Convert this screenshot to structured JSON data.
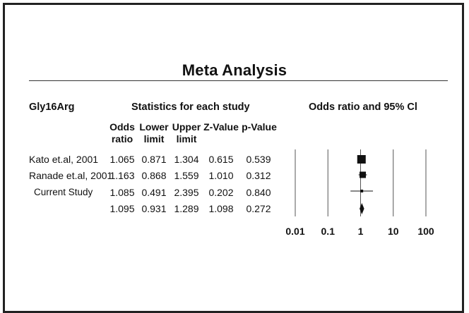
{
  "title": "Meta Analysis",
  "header": {
    "group": "Gly16Arg",
    "stats": "Statistics for each study",
    "forest": "Odds ratio and 95% Cl"
  },
  "columns": [
    {
      "line1": "Odds",
      "line2": "ratio"
    },
    {
      "line1": "Lower",
      "line2": "limit"
    },
    {
      "line1": "Upper",
      "line2": "limit"
    },
    {
      "line1": "",
      "line2": "Z-Value"
    },
    {
      "line1": "",
      "line2": "p-Value"
    }
  ],
  "rows": [
    {
      "study": "Kato et.al, 2001",
      "or": "1.065",
      "lower": "0.871",
      "upper": "1.304",
      "z": "0.615",
      "p": "0.539"
    },
    {
      "study": "Ranade et.al, 2001",
      "or": "1.163",
      "lower": "0.868",
      "upper": "1.559",
      "z": "1.010",
      "p": "0.312"
    },
    {
      "study": "Current Study",
      "or": "1.085",
      "lower": "0.491",
      "upper": "2.395",
      "z": "0.202",
      "p": "0.840"
    },
    {
      "study": "",
      "or": "1.095",
      "lower": "0.931",
      "upper": "1.289",
      "z": "1.098",
      "p": "0.272"
    }
  ],
  "chart_data": {
    "type": "scatter",
    "subtype": "forest-plot",
    "title": "Meta Analysis",
    "xlabel": "Odds ratio and 95% Cl",
    "x_scale": "log",
    "xlim": [
      0.01,
      100
    ],
    "ticks": [
      "0.01",
      "0.1",
      "1",
      "10",
      "100"
    ],
    "tick_values": [
      0.01,
      0.1,
      1,
      10,
      100
    ],
    "grid": "vertical lines at ticks",
    "points": [
      {
        "study": "Kato et.al, 2001",
        "or": 1.065,
        "lower": 0.871,
        "upper": 1.304,
        "marker": "square",
        "weight": "large"
      },
      {
        "study": "Ranade et.al, 2001",
        "or": 1.163,
        "lower": 0.868,
        "upper": 1.559,
        "marker": "square",
        "weight": "medium"
      },
      {
        "study": "Current Study",
        "or": 1.085,
        "lower": 0.491,
        "upper": 2.395,
        "marker": "square",
        "weight": "small"
      },
      {
        "study": "",
        "or": 1.095,
        "lower": 0.931,
        "upper": 1.289,
        "marker": "diamond",
        "weight": "summary"
      }
    ]
  }
}
